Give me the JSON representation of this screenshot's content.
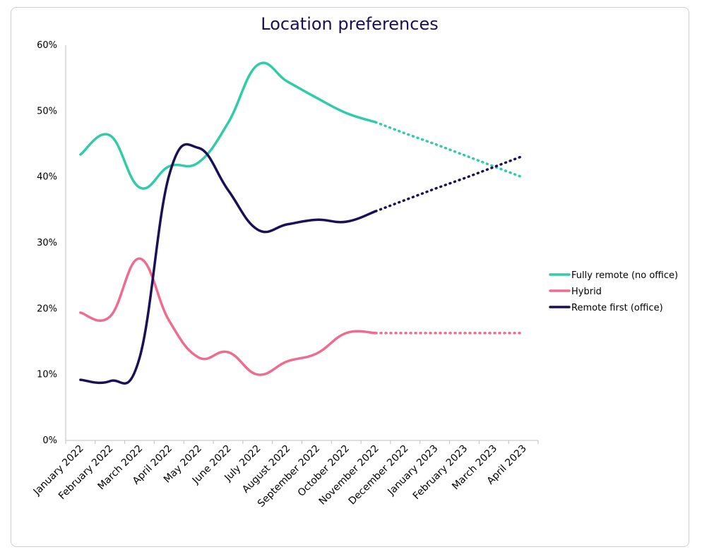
{
  "chart_data": {
    "type": "line",
    "title": "Location preferences",
    "xlabel": "",
    "ylabel": "",
    "ylim": [
      0,
      60
    ],
    "y_ticks": [
      "0%",
      "10%",
      "20%",
      "30%",
      "40%",
      "50%",
      "60%"
    ],
    "categories": [
      "January 2022",
      "February 2022",
      "March 2022",
      "April 2022",
      "May 2022",
      "June 2022",
      "July 2022",
      "August 2022",
      "September 2022",
      "October 2022",
      "November 2022",
      "December 2022",
      "January 2023",
      "February 2023",
      "March 2023",
      "April 2023"
    ],
    "legend_position": "right",
    "grid": false,
    "series": [
      {
        "name": "Fully remote (no office)",
        "color": "#2fcca6",
        "values": [
          43.4,
          46.3,
          38.4,
          41.6,
          42.2,
          48.2,
          57.0,
          54.5,
          52.0,
          49.7,
          48.3,
          null,
          null,
          null,
          null,
          null
        ],
        "forecast": [
          null,
          null,
          null,
          null,
          null,
          null,
          null,
          null,
          null,
          null,
          48.3,
          46.6,
          45.0,
          43.3,
          41.6,
          39.9
        ]
      },
      {
        "name": "Hybrid",
        "color": "#ef6b8f",
        "values": [
          19.4,
          18.8,
          27.6,
          18.2,
          12.6,
          13.4,
          10.0,
          12.0,
          13.2,
          16.3,
          16.3,
          null,
          null,
          null,
          null,
          null
        ],
        "forecast": [
          null,
          null,
          null,
          null,
          null,
          null,
          null,
          null,
          null,
          null,
          16.3,
          16.3,
          16.3,
          16.3,
          16.3,
          16.3
        ]
      },
      {
        "name": "Remote first (office)",
        "color": "#1a1154",
        "values": [
          9.2,
          9.0,
          12.5,
          40.2,
          44.4,
          38.0,
          32.0,
          32.8,
          33.5,
          33.2,
          34.8,
          null,
          null,
          null,
          null,
          null
        ],
        "forecast": [
          null,
          null,
          null,
          null,
          null,
          null,
          null,
          null,
          null,
          null,
          34.8,
          36.5,
          38.2,
          39.8,
          41.5,
          43.2
        ]
      }
    ]
  }
}
